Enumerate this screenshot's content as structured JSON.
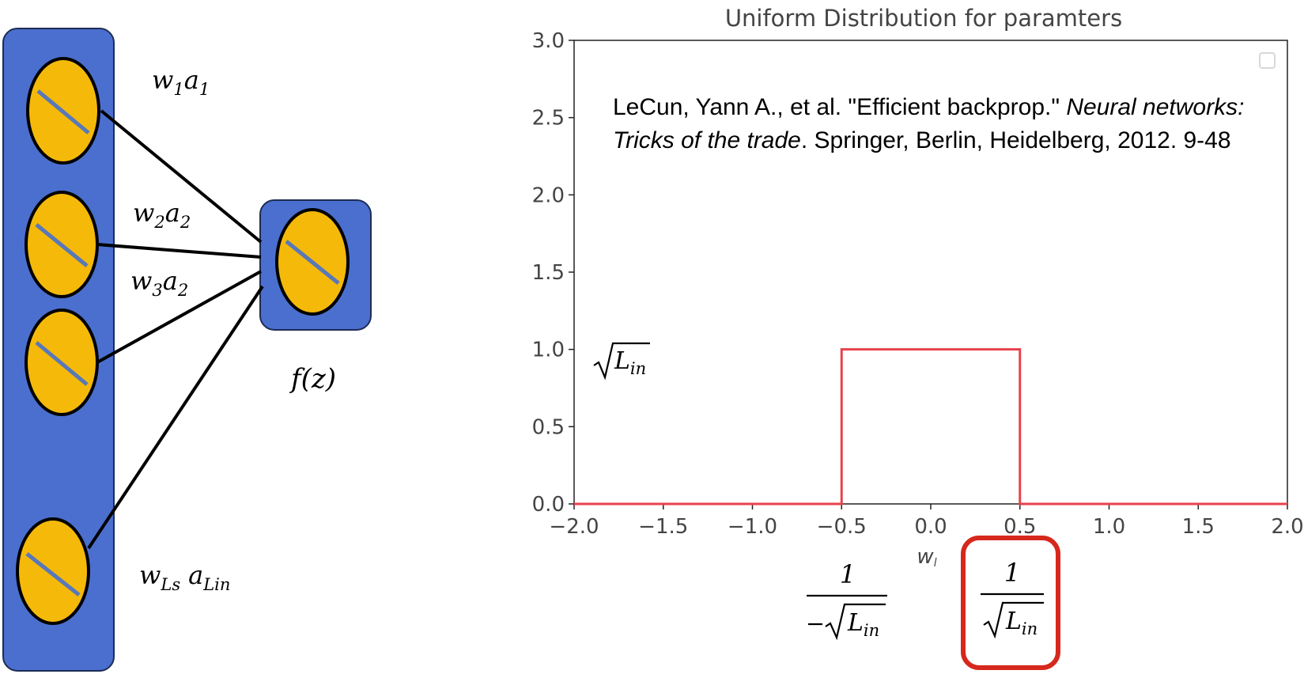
{
  "network": {
    "input_nodes": 4,
    "weight_labels": [
      {
        "w": "w",
        "w_sub": "1",
        "a": "a",
        "a_sub": "1"
      },
      {
        "w": "w",
        "w_sub": "2",
        "a": "a",
        "a_sub": "2"
      },
      {
        "w": "w",
        "w_sub": "3",
        "a": "a",
        "a_sub": "2"
      },
      {
        "w": "w",
        "w_sub": "Ls",
        "a": "a",
        "a_sub": "Lin"
      }
    ],
    "output_label": "f(z)"
  },
  "citation": {
    "part1": "LeCun, Yann A., et al. \"Efficient backprop.\" ",
    "italic": "Neural networks: Tricks of the trade",
    "part2": ". Springer, Berlin, Heidelberg, 2012. 9-48"
  },
  "annotations": {
    "height_label": "√L_in",
    "lower_bound": {
      "num": "1",
      "den": "−√L_in"
    },
    "upper_bound": {
      "num": "1",
      "den": "√L_in"
    },
    "highlight_color": "#d6281c"
  },
  "chart_data": {
    "type": "line",
    "title": "Uniform Distribution for paramters",
    "xlabel": "w_l",
    "ylabel": "",
    "xlim": [
      -2.0,
      2.0
    ],
    "ylim": [
      0.0,
      3.0
    ],
    "xticks": [
      "−2.0",
      "−1.5",
      "−1.0",
      "−0.5",
      "0.0",
      "0.5",
      "1.0",
      "1.5",
      "2.0"
    ],
    "yticks": [
      "0.0",
      "0.5",
      "1.0",
      "1.5",
      "2.0",
      "2.5",
      "3.0"
    ],
    "xtick_values": [
      -2.0,
      -1.5,
      -1.0,
      -0.5,
      0.0,
      0.5,
      1.0,
      1.5,
      2.0
    ],
    "ytick_values": [
      0.0,
      0.5,
      1.0,
      1.5,
      2.0,
      2.5,
      3.0
    ],
    "series": [
      {
        "color": "#e8424d",
        "x": [
          -2.0,
          -0.5,
          -0.5,
          0.5,
          0.5,
          2.0
        ],
        "y": [
          0.0,
          0.0,
          1.0,
          1.0,
          0.0,
          0.0
        ]
      }
    ],
    "legend": "top-right",
    "grid": false
  },
  "colors": {
    "panel_blue": "#4a6fcf",
    "node_yellow": "#f5b90a",
    "node_line": "#5878b8"
  }
}
